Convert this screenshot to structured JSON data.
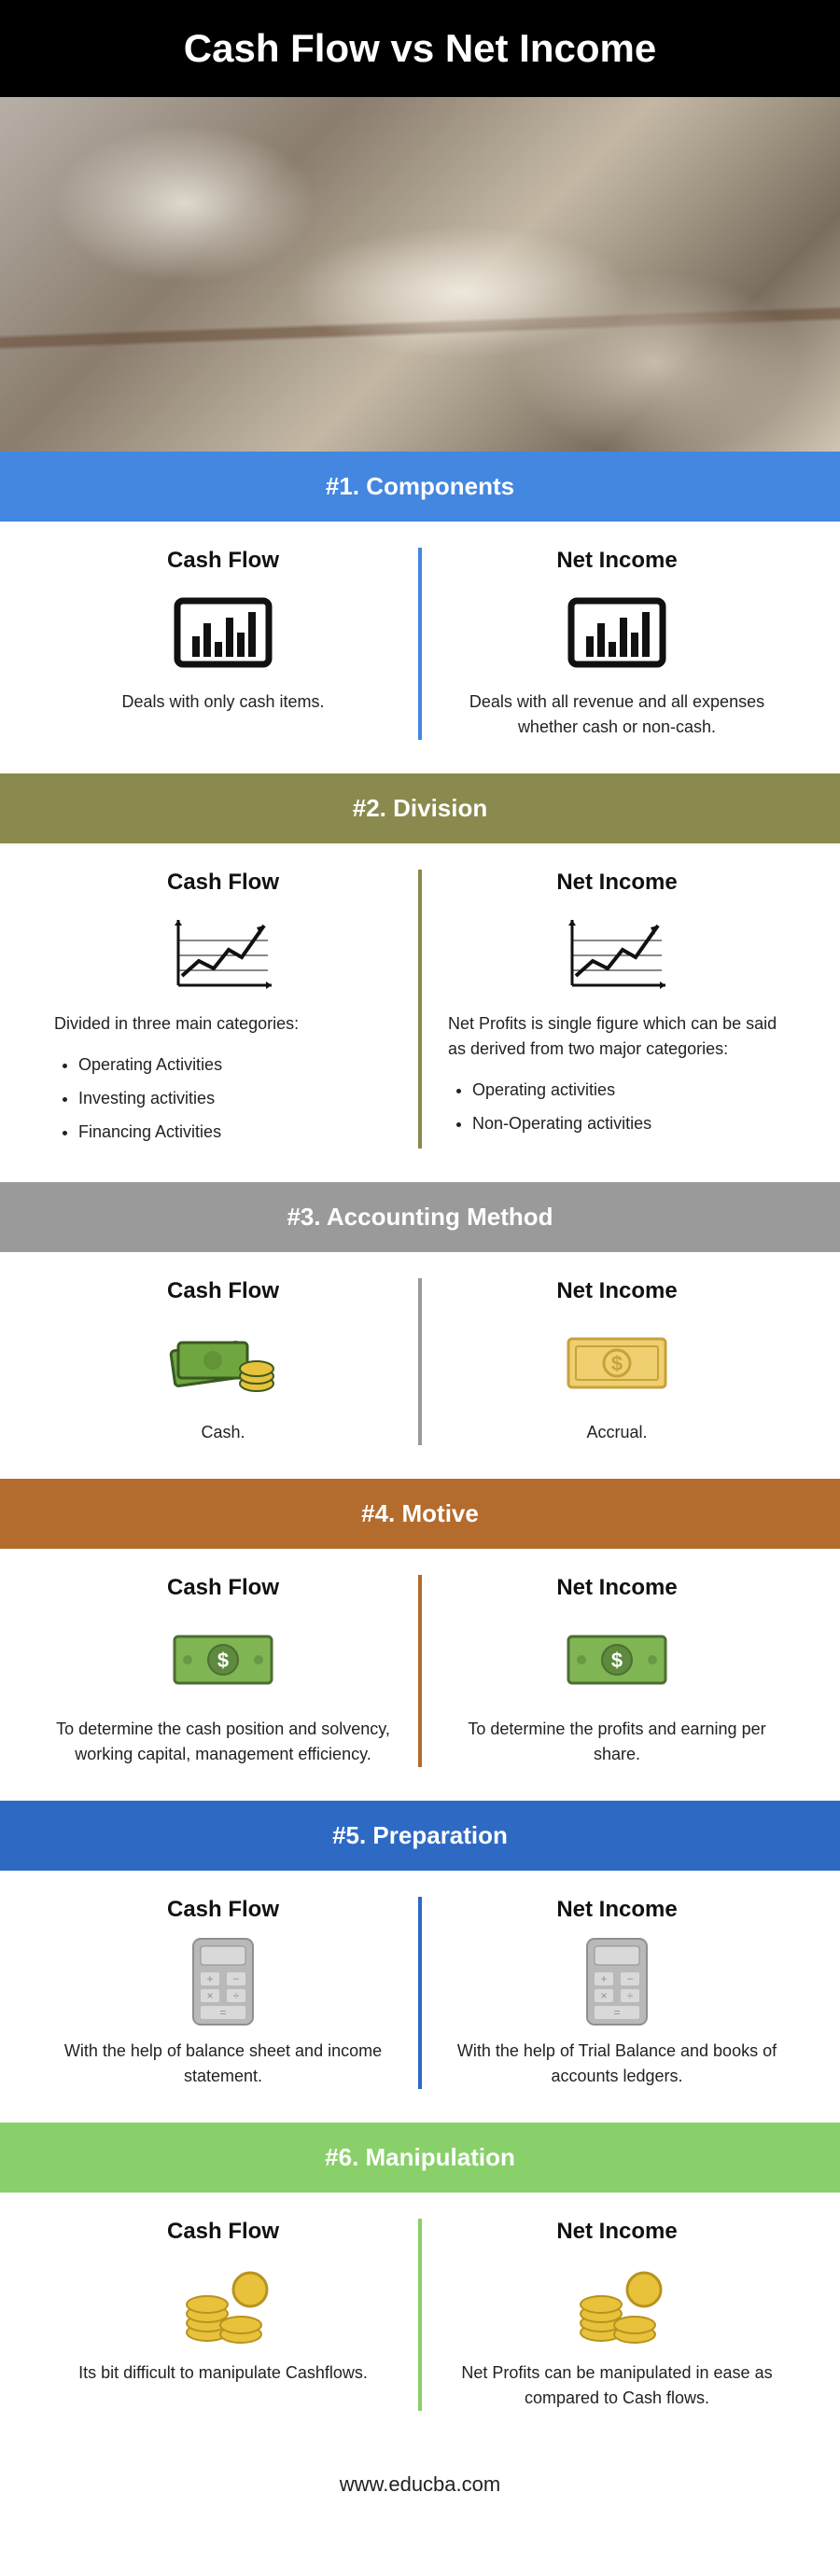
{
  "title": "Cash Flow vs Net Income",
  "footer_url": "www.educba.com",
  "labels": {
    "cashflow": "Cash Flow",
    "netincome": "Net Income"
  },
  "sections": [
    {
      "header": "#1. Components",
      "header_bg": "#4387e0",
      "divider_color": "#4387e0",
      "icon": "barchart",
      "left": {
        "desc": "Deals with only cash items."
      },
      "right": {
        "desc": "Deals with all revenue and all expenses whether cash or non-cash."
      }
    },
    {
      "header": "#2. Division",
      "header_bg": "#8b8a4e",
      "divider_color": "#8b8a4e",
      "icon": "linechart",
      "left": {
        "intro": "Divided in three main categories:",
        "bullets": [
          "Operating Activities",
          "Investing activities",
          "Financing Activities"
        ]
      },
      "right": {
        "intro": "Net Profits is single figure which can be said as derived from two major categories:",
        "bullets": [
          "Operating activities",
          "Non-Operating activities"
        ]
      }
    },
    {
      "header": "#3. Accounting Method",
      "header_bg": "#9a9a9a",
      "divider_color": "#9a9a9a",
      "icon": "cashcoins",
      "icon_right": "banknote",
      "left": {
        "desc": "Cash."
      },
      "right": {
        "desc": "Accrual."
      }
    },
    {
      "header": "#4. Motive",
      "header_bg": "#b36b2e",
      "divider_color": "#b36b2e",
      "icon": "dollarbill",
      "left": {
        "desc": "To determine the cash position and solvency, working capital, management efficiency."
      },
      "right": {
        "desc": "To determine the profits and earning per share."
      }
    },
    {
      "header": "#5. Preparation",
      "header_bg": "#2e6ac4",
      "divider_color": "#2e6ac4",
      "icon": "calculator",
      "left": {
        "desc": "With the help of balance sheet and income statement."
      },
      "right": {
        "desc": "With the help of Trial Balance and books of accounts ledgers."
      }
    },
    {
      "header": "#6. Manipulation",
      "header_bg": "#89d06a",
      "divider_color": "#89d06a",
      "icon": "coinstack",
      "left": {
        "desc": "Its bit difficult to manipulate Cashflows."
      },
      "right": {
        "desc": "Net Profits can be manipulated in ease as compared to Cash flows."
      }
    }
  ],
  "icons": {
    "barchart_stroke": "#111111",
    "linechart_stroke": "#111111",
    "cashcoins_colors": {
      "bill": "#6fa63f",
      "coin": "#e7c23a",
      "outline": "#3b5a22"
    },
    "banknote_colors": {
      "fill": "#f0cf70",
      "stroke": "#c7a23a",
      "symbol": "#c7a23a"
    },
    "dollarbill_colors": {
      "fill": "#7fb553",
      "stroke": "#4d6e33",
      "circle": "#5d8a3c"
    },
    "calculator_colors": {
      "body": "#b9b9b9",
      "screen": "#d9d9d9",
      "stroke": "#8f8f8f"
    },
    "coinstack_colors": {
      "fill": "#e7c23a",
      "stroke": "#b8921f"
    }
  }
}
